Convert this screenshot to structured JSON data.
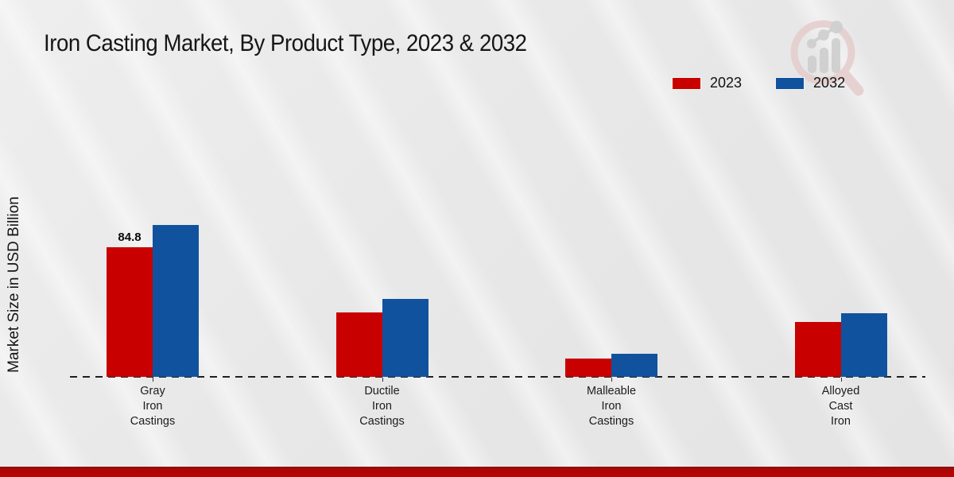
{
  "title": "Iron Casting Market, By Product Type, 2023 & 2032",
  "ylabel": "Market Size in USD Billion",
  "legend": [
    {
      "label": "2023",
      "color": "#c80100"
    },
    {
      "label": "2032",
      "color": "#11529e"
    }
  ],
  "colors": {
    "red_series": "#c80100",
    "blue_series": "#11529e",
    "baseline": "#1f1f1f",
    "bottom_band": "#b40404",
    "background": "#e7e7e7"
  },
  "chart_data": {
    "type": "bar",
    "categories": [
      "Gray\nIron\nCastings",
      "Ductile\nIron\nCastings",
      "Malleable\nIron\nCastings",
      "Alloyed\nCast\nIron"
    ],
    "series": [
      {
        "name": "2023",
        "color": "#c80100",
        "values": [
          84.8,
          42.3,
          11.8,
          35.7
        ]
      },
      {
        "name": "2032",
        "color": "#11529e",
        "values": [
          99.5,
          51.0,
          14.9,
          41.8
        ]
      }
    ],
    "annotations": [
      {
        "category_index": 0,
        "series_index": 0,
        "text": "84.8"
      }
    ],
    "title": "Iron Casting Market, By Product Type, 2023 & 2032",
    "xlabel": "",
    "ylabel": "Market Size in USD Billion",
    "ylim": [
      0,
      105
    ],
    "grid": false,
    "legend_position": "top-right",
    "baseline_style": "dashed"
  }
}
